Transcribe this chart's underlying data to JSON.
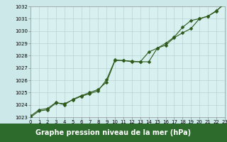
{
  "title": "Graphe pression niveau de la mer (hPa)",
  "background_color": "#cce8e8",
  "plot_bg_color": "#d8f0f0",
  "grid_color": "#b8d4d4",
  "line_color": "#2d5a1b",
  "title_bg": "#2d6b2d",
  "title_fg": "#ffffff",
  "x_min": 0,
  "x_max": 23,
  "y_min": 1023,
  "y_max": 1032,
  "x_ticks": [
    0,
    1,
    2,
    3,
    4,
    5,
    6,
    7,
    8,
    9,
    10,
    11,
    12,
    13,
    14,
    15,
    16,
    17,
    18,
    19,
    20,
    21,
    22,
    23
  ],
  "y_ticks": [
    1023,
    1024,
    1025,
    1026,
    1027,
    1028,
    1029,
    1030,
    1031,
    1032
  ],
  "series1_x": [
    0,
    1,
    2,
    3,
    4,
    5,
    6,
    7,
    8,
    9,
    10,
    11,
    12,
    13,
    14,
    15,
    16,
    17,
    18,
    19,
    20,
    21,
    22,
    23
  ],
  "series1_y": [
    1023.1,
    1023.6,
    1023.7,
    1024.2,
    1024.0,
    1024.45,
    1024.75,
    1025.0,
    1025.25,
    1025.85,
    1027.6,
    1027.6,
    1027.55,
    1027.5,
    1027.5,
    1028.6,
    1028.85,
    1029.45,
    1029.85,
    1030.2,
    1031.0,
    1031.2,
    1031.65,
    1032.2
  ],
  "series2_x": [
    0,
    1,
    2,
    3,
    4,
    5,
    6,
    7,
    8,
    9,
    10,
    11,
    12,
    13,
    14,
    15,
    16,
    17,
    18,
    19,
    20,
    21,
    22,
    23
  ],
  "series2_y": [
    1023.0,
    1023.5,
    1023.6,
    1024.15,
    1024.1,
    1024.4,
    1024.7,
    1024.9,
    1025.15,
    1026.05,
    1027.65,
    1027.6,
    1027.5,
    1027.5,
    1028.3,
    1028.6,
    1029.0,
    1029.5,
    1030.3,
    1030.85,
    1031.0,
    1031.2,
    1031.6,
    1032.3
  ],
  "marker": "D",
  "marker_size": 2.5,
  "line_width": 0.8,
  "title_fontsize": 7,
  "tick_fontsize": 5.0
}
